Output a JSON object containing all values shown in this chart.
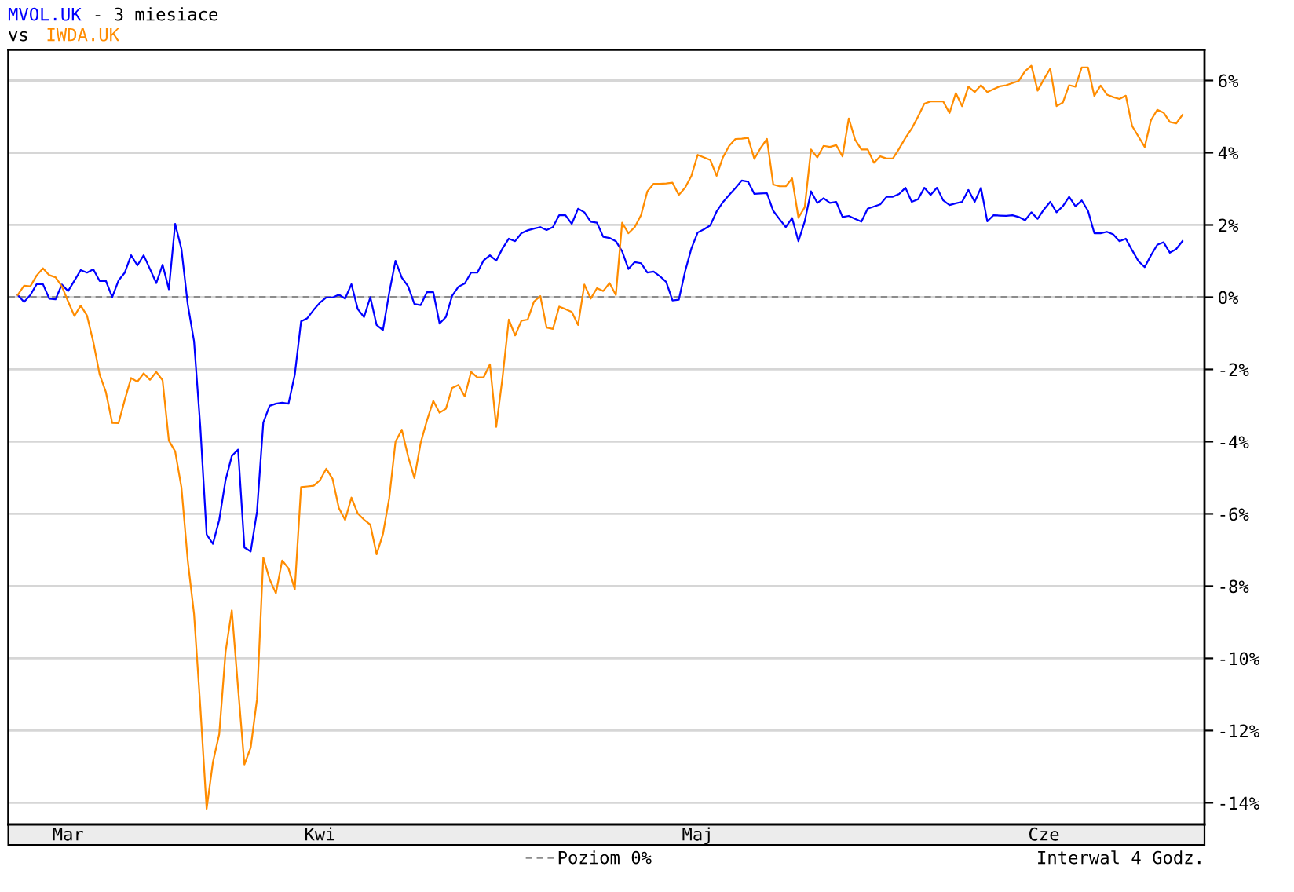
{
  "chart_data": {
    "type": "line",
    "title": "- 3 miesiace",
    "subtitle": "vs",
    "annotations": [
      "Interwal 4 Godz."
    ],
    "categories": [
      null,
      null,
      null,
      null,
      null,
      null,
      null,
      null,
      null,
      "Mar",
      null,
      null,
      null,
      null,
      null,
      null,
      null,
      null,
      null,
      null,
      null,
      null,
      null,
      null,
      null,
      null,
      null,
      null,
      null,
      null,
      null,
      null,
      null,
      null,
      null,
      null,
      null,
      null,
      null,
      null,
      null,
      null,
      null,
      null,
      null,
      null,
      null,
      null,
      null,
      "Kwi",
      null,
      null,
      null,
      null,
      null,
      null,
      null,
      null,
      null,
      null,
      null,
      null,
      null,
      null,
      null,
      null,
      null,
      null,
      null,
      null,
      null,
      null,
      null,
      null,
      null,
      null,
      null,
      null,
      null,
      null,
      null,
      null,
      null,
      null,
      null,
      null,
      null,
      null,
      null,
      null,
      null,
      null,
      null,
      null,
      null,
      null,
      null,
      null,
      null,
      null,
      null,
      null,
      null,
      null,
      null,
      null,
      null,
      null,
      null,
      "Maj",
      null,
      null,
      null,
      null,
      null,
      null,
      null,
      null,
      null,
      null,
      null,
      null,
      null,
      null,
      null,
      null,
      null,
      null,
      null,
      null,
      null,
      null,
      null,
      null,
      null,
      null,
      null,
      null,
      null,
      null,
      null,
      null,
      null,
      null,
      null,
      null,
      null,
      null,
      null,
      null,
      null,
      null,
      null,
      null,
      null,
      null,
      null,
      null,
      null,
      null,
      null,
      null,
      null,
      null,
      "Cze",
      null,
      null,
      null,
      null,
      null,
      null,
      null,
      null,
      null,
      null,
      null,
      null,
      null,
      null,
      null,
      null,
      null,
      null,
      null,
      null,
      null,
      null,
      null,
      null,
      null
    ],
    "ylim": [
      -14.6,
      6.85
    ],
    "yticks": [
      {
        "value": 6,
        "label": "6%"
      },
      {
        "value": 4,
        "label": "4%"
      },
      {
        "value": 2,
        "label": "2%"
      },
      {
        "value": 0,
        "label": "0%"
      },
      {
        "value": -2,
        "label": "-2%"
      },
      {
        "value": -4,
        "label": "-4%"
      },
      {
        "value": -6,
        "label": "-6%"
      },
      {
        "value": -8,
        "label": "-8%"
      },
      {
        "value": -10,
        "label": "-10%"
      },
      {
        "value": -12,
        "label": "-12%"
      },
      {
        "value": -14,
        "label": "-14%"
      }
    ],
    "grid": "y",
    "legend": "bottom",
    "ref_lines": [
      {
        "axis": "y",
        "value": 0,
        "label": "Poziom 0%",
        "color": "#8c8c8c",
        "line_style": "dashed"
      }
    ],
    "series": [
      {
        "name": "MVOL.UK",
        "color": "#0000ff",
        "values": [
          null,
          0.06,
          -0.13,
          0.06,
          0.36,
          0.36,
          -0.04,
          -0.06,
          0.35,
          0.17,
          0.46,
          0.75,
          0.68,
          0.77,
          0.45,
          0.45,
          0.0,
          0.46,
          0.68,
          1.16,
          0.88,
          1.16,
          0.78,
          0.39,
          0.9,
          0.22,
          2.03,
          1.33,
          -0.2,
          -1.22,
          -3.6,
          -6.57,
          -6.83,
          -6.17,
          -5.07,
          -4.4,
          -4.22,
          -6.93,
          -7.04,
          -5.94,
          -3.47,
          -3.01,
          -2.95,
          -2.92,
          -2.95,
          -2.15,
          -0.67,
          -0.58,
          -0.35,
          -0.15,
          -0.01,
          -0.01,
          0.07,
          -0.04,
          0.36,
          -0.33,
          -0.55,
          0.0,
          -0.77,
          -0.91,
          0.12,
          1.01,
          0.54,
          0.3,
          -0.19,
          -0.22,
          0.14,
          0.14,
          -0.73,
          -0.55,
          0.04,
          0.29,
          0.38,
          0.68,
          0.68,
          1.02,
          1.16,
          1.01,
          1.35,
          1.62,
          1.55,
          1.77,
          1.85,
          1.9,
          1.94,
          1.86,
          1.94,
          2.27,
          2.27,
          2.03,
          2.45,
          2.35,
          2.09,
          2.06,
          1.67,
          1.64,
          1.55,
          1.27,
          0.78,
          0.97,
          0.94,
          0.68,
          0.71,
          0.58,
          0.42,
          -0.09,
          -0.07,
          0.71,
          1.35,
          1.79,
          1.88,
          1.99,
          2.37,
          2.63,
          2.83,
          3.02,
          3.23,
          3.2,
          2.86,
          2.87,
          2.88,
          2.39,
          2.16,
          1.94,
          2.19,
          1.55,
          2.1,
          2.93,
          2.61,
          2.74,
          2.61,
          2.64,
          2.22,
          2.25,
          2.17,
          2.09,
          2.45,
          2.51,
          2.57,
          2.78,
          2.78,
          2.86,
          3.03,
          2.64,
          2.71,
          3.03,
          2.83,
          3.03,
          2.68,
          2.55,
          2.6,
          2.64,
          2.97,
          2.64,
          3.03,
          2.1,
          2.27,
          2.26,
          2.25,
          2.27,
          2.22,
          2.13,
          2.35,
          2.17,
          2.43,
          2.64,
          2.35,
          2.52,
          2.78,
          2.52,
          2.68,
          2.39,
          1.77,
          1.77,
          1.81,
          1.74,
          1.55,
          1.62,
          1.3,
          1.0,
          0.83,
          1.16,
          1.45,
          1.52,
          1.23,
          1.33,
          1.55,
          null,
          null,
          null
        ]
      },
      {
        "name": "IWDA.UK",
        "color": "#ff8c00",
        "values": [
          null,
          0.06,
          0.32,
          0.3,
          0.6,
          0.8,
          0.61,
          0.55,
          0.3,
          -0.12,
          -0.52,
          -0.23,
          -0.51,
          -1.24,
          -2.14,
          -2.63,
          -3.48,
          -3.49,
          -2.84,
          -2.24,
          -2.34,
          -2.11,
          -2.29,
          -2.07,
          -2.3,
          -3.97,
          -4.27,
          -5.27,
          -7.29,
          -8.77,
          -11.35,
          -14.17,
          -12.87,
          -12.1,
          -9.83,
          -8.67,
          -10.83,
          -12.94,
          -12.47,
          -11.13,
          -7.21,
          -7.81,
          -8.2,
          -7.29,
          -7.51,
          -8.09,
          -5.26,
          -5.24,
          -5.22,
          -5.07,
          -4.75,
          -5.03,
          -5.84,
          -6.17,
          -5.55,
          -5.99,
          -6.16,
          -6.3,
          -7.12,
          -6.56,
          -5.57,
          -4.0,
          -3.67,
          -4.41,
          -5.01,
          -4.03,
          -3.41,
          -2.87,
          -3.2,
          -3.09,
          -2.51,
          -2.43,
          -2.75,
          -2.07,
          -2.22,
          -2.22,
          -1.86,
          -3.59,
          -2.22,
          -0.62,
          -1.06,
          -0.65,
          -0.62,
          -0.12,
          0.03,
          -0.84,
          -0.88,
          -0.26,
          -0.33,
          -0.41,
          -0.77,
          0.35,
          -0.04,
          0.25,
          0.17,
          0.39,
          0.06,
          2.06,
          1.77,
          1.94,
          2.27,
          2.93,
          3.14,
          3.14,
          3.15,
          3.17,
          2.83,
          3.03,
          3.36,
          3.94,
          3.87,
          3.8,
          3.36,
          3.87,
          4.19,
          4.38,
          4.39,
          4.41,
          3.83,
          4.13,
          4.38,
          3.12,
          3.07,
          3.07,
          3.29,
          2.2,
          2.49,
          4.09,
          3.87,
          4.19,
          4.16,
          4.21,
          3.9,
          4.95,
          4.36,
          4.09,
          4.09,
          3.72,
          3.9,
          3.84,
          3.84,
          4.11,
          4.41,
          4.67,
          5.0,
          5.36,
          5.42,
          5.42,
          5.42,
          5.1,
          5.65,
          5.29,
          5.83,
          5.68,
          5.87,
          5.68,
          5.76,
          5.84,
          5.87,
          5.93,
          5.99,
          6.26,
          6.41,
          5.72,
          6.04,
          6.33,
          5.29,
          5.39,
          5.87,
          5.83,
          6.36,
          6.36,
          5.57,
          5.86,
          5.61,
          5.54,
          5.49,
          5.58,
          4.74,
          4.45,
          4.16,
          4.9,
          5.19,
          5.11,
          4.85,
          4.81,
          5.05,
          null,
          null,
          null
        ]
      }
    ]
  }
}
